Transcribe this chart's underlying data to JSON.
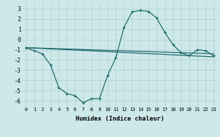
{
  "xlabel": "Humidex (Indice chaleur)",
  "background_color": "#cce8e8",
  "grid_color": "#b0cccc",
  "line_color": "#1a6868",
  "xlim": [
    -0.5,
    23.5
  ],
  "ylim": [
    -6.6,
    3.6
  ],
  "xticks": [
    0,
    1,
    2,
    3,
    4,
    5,
    6,
    7,
    8,
    9,
    10,
    11,
    12,
    13,
    14,
    15,
    16,
    17,
    18,
    19,
    20,
    21,
    22,
    23
  ],
  "yticks": [
    -6,
    -5,
    -4,
    -3,
    -2,
    -1,
    0,
    1,
    2,
    3
  ],
  "curve_x": [
    0,
    1,
    2,
    3,
    4,
    5,
    6,
    7,
    8,
    9,
    10,
    11,
    12,
    13,
    14,
    15,
    16,
    17,
    18,
    19,
    20,
    21,
    22,
    23
  ],
  "curve_y": [
    -0.8,
    -1.1,
    -1.4,
    -2.5,
    -4.7,
    -5.3,
    -5.5,
    -6.2,
    -5.8,
    -5.8,
    -3.5,
    -1.8,
    1.2,
    2.7,
    2.85,
    2.75,
    2.1,
    0.7,
    -0.5,
    -1.3,
    -1.6,
    -1.0,
    -1.1,
    -1.6
  ],
  "line1_x": [
    0,
    23
  ],
  "line1_y": [
    -0.8,
    -1.4
  ],
  "line2_x": [
    0,
    23
  ],
  "line2_y": [
    -0.8,
    -1.7
  ]
}
